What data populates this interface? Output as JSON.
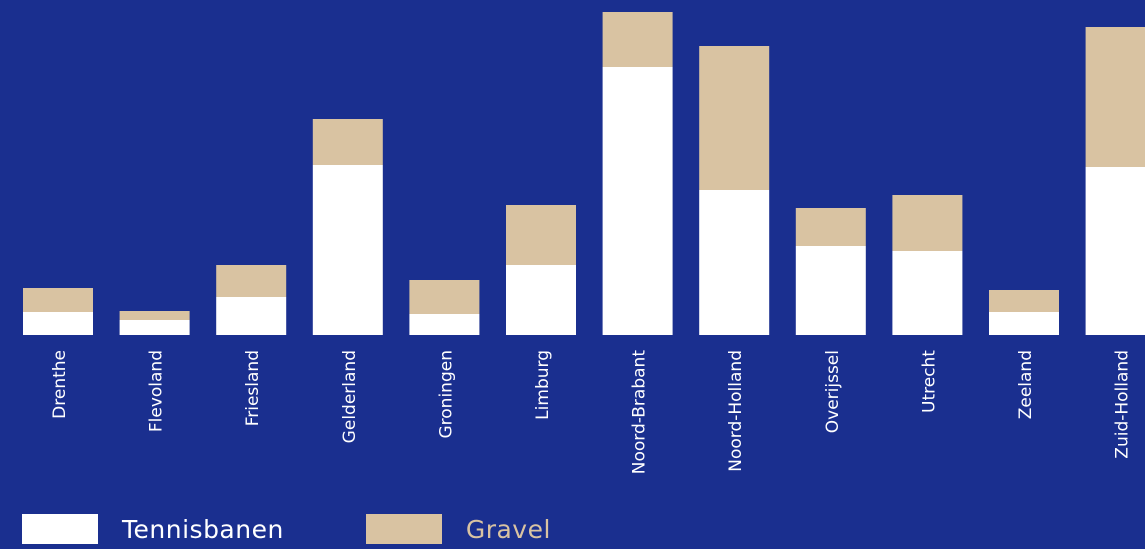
{
  "chart_data": {
    "type": "bar",
    "stacked": true,
    "categories": [
      "Drenthe",
      "Flevoland",
      "Friesland",
      "Gelderland",
      "Groningen",
      "Limburg",
      "Noord-Brabant",
      "Noord-Holland",
      "Overijssel",
      "Utrecht",
      "Zeeland",
      "Zuid-Holland"
    ],
    "series": [
      {
        "name": "Tennisbanen",
        "color": "#ffffff",
        "values": [
          23,
          15,
          38,
          170,
          21,
          70,
          268,
          145,
          89,
          84,
          23,
          168
        ]
      },
      {
        "name": "Gravel",
        "color": "#d9c3a2",
        "values": [
          24,
          9,
          32,
          46,
          34,
          60,
          55,
          144,
          38,
          56,
          22,
          140
        ]
      }
    ],
    "ylim": [
      0,
      325
    ],
    "grid": false,
    "legend_position": "bottom-left",
    "background": "#1a2f8f",
    "label_color": "#ffffff"
  }
}
